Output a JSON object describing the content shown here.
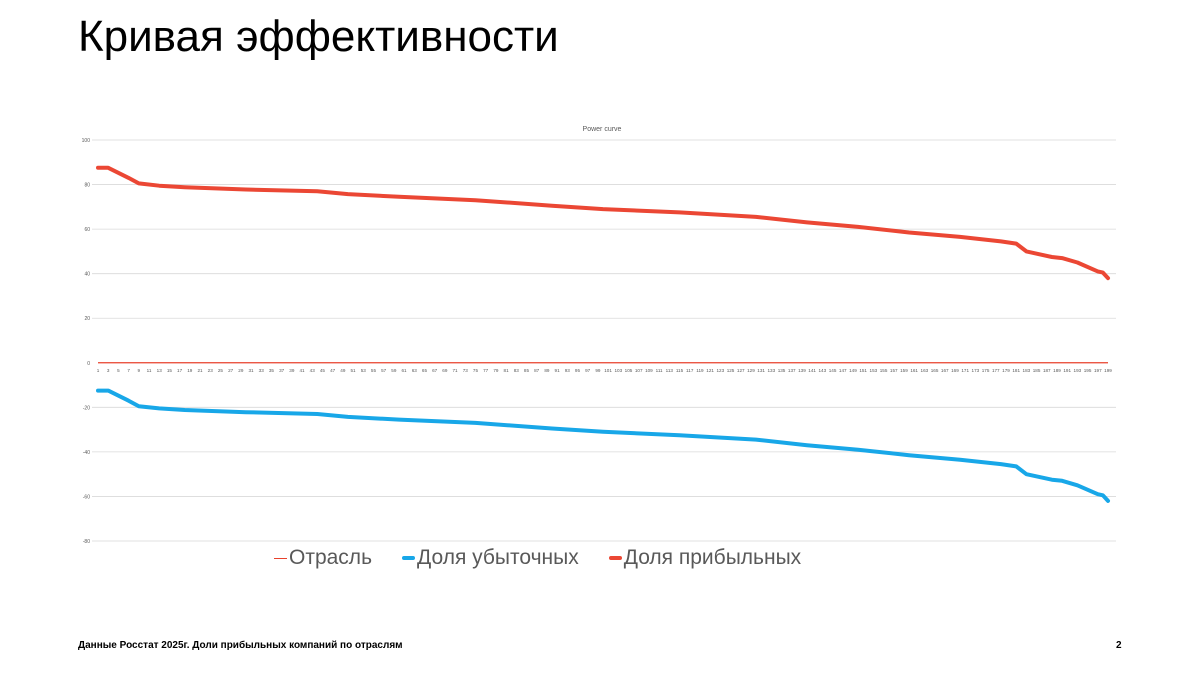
{
  "slide": {
    "title": "Кривая эффективности",
    "footer": "Данные Росстат 2025г. Доли прибыльных компаний по отраслям",
    "page_number": "2"
  },
  "colors": {
    "otrasl": "#E8412C",
    "loss": "#18A7E8",
    "profit": "#EB4734",
    "grid": "#D9D9D9",
    "tick_text": "#595959"
  },
  "legend": {
    "items": [
      {
        "label": "Отрасль"
      },
      {
        "label": "Доля убыточных"
      },
      {
        "label": "Доля прибыльных"
      }
    ]
  },
  "chart_data": {
    "type": "line",
    "title": "Power curve",
    "xlabel": "",
    "ylabel": "",
    "ylim": [
      -80,
      100
    ],
    "y_ticks": [
      100,
      80,
      60,
      40,
      20,
      0,
      -20,
      -40,
      -60,
      -80
    ],
    "x_range": [
      1,
      199
    ],
    "x_tick_labels": [
      "1",
      "3",
      "5",
      "7",
      "9",
      "11",
      "13",
      "15",
      "17",
      "19",
      "21",
      "23",
      "25",
      "27",
      "29",
      "31",
      "33",
      "35",
      "37",
      "39",
      "41",
      "43",
      "45",
      "47",
      "49",
      "51",
      "53",
      "55",
      "57",
      "59",
      "61",
      "63",
      "65",
      "67",
      "69",
      "71",
      "73",
      "75",
      "77",
      "79",
      "81",
      "83",
      "85",
      "87",
      "89",
      "91",
      "93",
      "95",
      "97",
      "99",
      "101",
      "103",
      "105",
      "107",
      "109",
      "111",
      "113",
      "115",
      "117",
      "119",
      "121",
      "123",
      "125",
      "127",
      "129",
      "131",
      "133",
      "135",
      "137",
      "139",
      "141",
      "143",
      "145",
      "147",
      "149",
      "151",
      "153",
      "155",
      "157",
      "159",
      "161",
      "163",
      "165",
      "167",
      "169",
      "171",
      "173",
      "175",
      "177",
      "179",
      "181",
      "183",
      "185",
      "187",
      "189",
      "191",
      "193",
      "195",
      "197",
      "199"
    ],
    "grid": true,
    "legend_position": "bottom",
    "series": [
      {
        "name": "Отрасль",
        "type": "constant",
        "value": 0
      },
      {
        "name": "Доля убыточных",
        "type": "piecewise",
        "points": [
          [
            1,
            -12.5
          ],
          [
            3,
            -12.5
          ],
          [
            7,
            -17
          ],
          [
            9,
            -19.5
          ],
          [
            13,
            -20.5
          ],
          [
            18,
            -21.2
          ],
          [
            30,
            -22.2
          ],
          [
            44,
            -23
          ],
          [
            50,
            -24.3
          ],
          [
            60,
            -25.5
          ],
          [
            75,
            -27
          ],
          [
            90,
            -29.5
          ],
          [
            100,
            -31
          ],
          [
            115,
            -32.5
          ],
          [
            130,
            -34.5
          ],
          [
            140,
            -37
          ],
          [
            150,
            -39
          ],
          [
            160,
            -41.5
          ],
          [
            170,
            -43.5
          ],
          [
            178,
            -45.5
          ],
          [
            181,
            -46.5
          ],
          [
            183,
            -50
          ],
          [
            188,
            -52.5
          ],
          [
            190,
            -53
          ],
          [
            193,
            -55
          ],
          [
            197,
            -59
          ],
          [
            198,
            -59.5
          ],
          [
            199,
            -62
          ]
        ]
      },
      {
        "name": "Доля прибыльных",
        "type": "piecewise",
        "points": [
          [
            1,
            87.5
          ],
          [
            3,
            87.5
          ],
          [
            7,
            83
          ],
          [
            9,
            80.5
          ],
          [
            13,
            79.5
          ],
          [
            18,
            78.8
          ],
          [
            30,
            77.8
          ],
          [
            44,
            77
          ],
          [
            50,
            75.7
          ],
          [
            60,
            74.5
          ],
          [
            75,
            73
          ],
          [
            90,
            70.5
          ],
          [
            100,
            69
          ],
          [
            115,
            67.5
          ],
          [
            130,
            65.5
          ],
          [
            140,
            63
          ],
          [
            150,
            61
          ],
          [
            160,
            58.5
          ],
          [
            170,
            56.5
          ],
          [
            178,
            54.5
          ],
          [
            181,
            53.5
          ],
          [
            183,
            50
          ],
          [
            188,
            47.5
          ],
          [
            190,
            47
          ],
          [
            193,
            45
          ],
          [
            197,
            41
          ],
          [
            198,
            40.5
          ],
          [
            199,
            38
          ]
        ]
      }
    ]
  }
}
